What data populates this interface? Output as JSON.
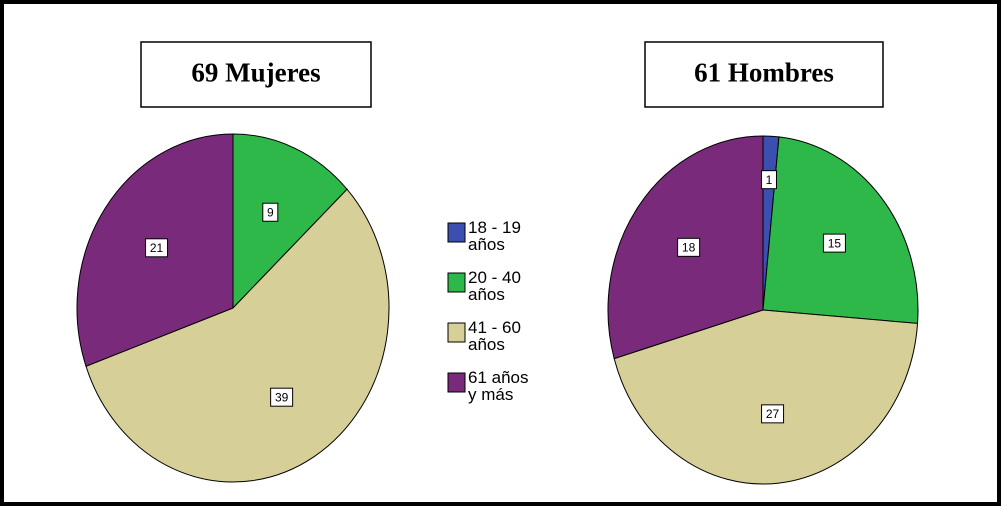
{
  "chart_data": [
    {
      "type": "pie",
      "title": "69 Mujeres",
      "categories": [
        "18 - 19 años",
        "20 - 40 años",
        "41 - 60 años",
        "61 años y más"
      ],
      "values": [
        0,
        9,
        39,
        21
      ],
      "colors": [
        "#3a4fb0",
        "#2fb84a",
        "#d6cf98",
        "#7a2a7a"
      ]
    },
    {
      "type": "pie",
      "title": "61 Hombres",
      "values": [
        1,
        15,
        27,
        18
      ],
      "colors": [
        "#3a4fb0",
        "#2fb84a",
        "#d6cf98",
        "#7a2a7a"
      ]
    }
  ]
}
